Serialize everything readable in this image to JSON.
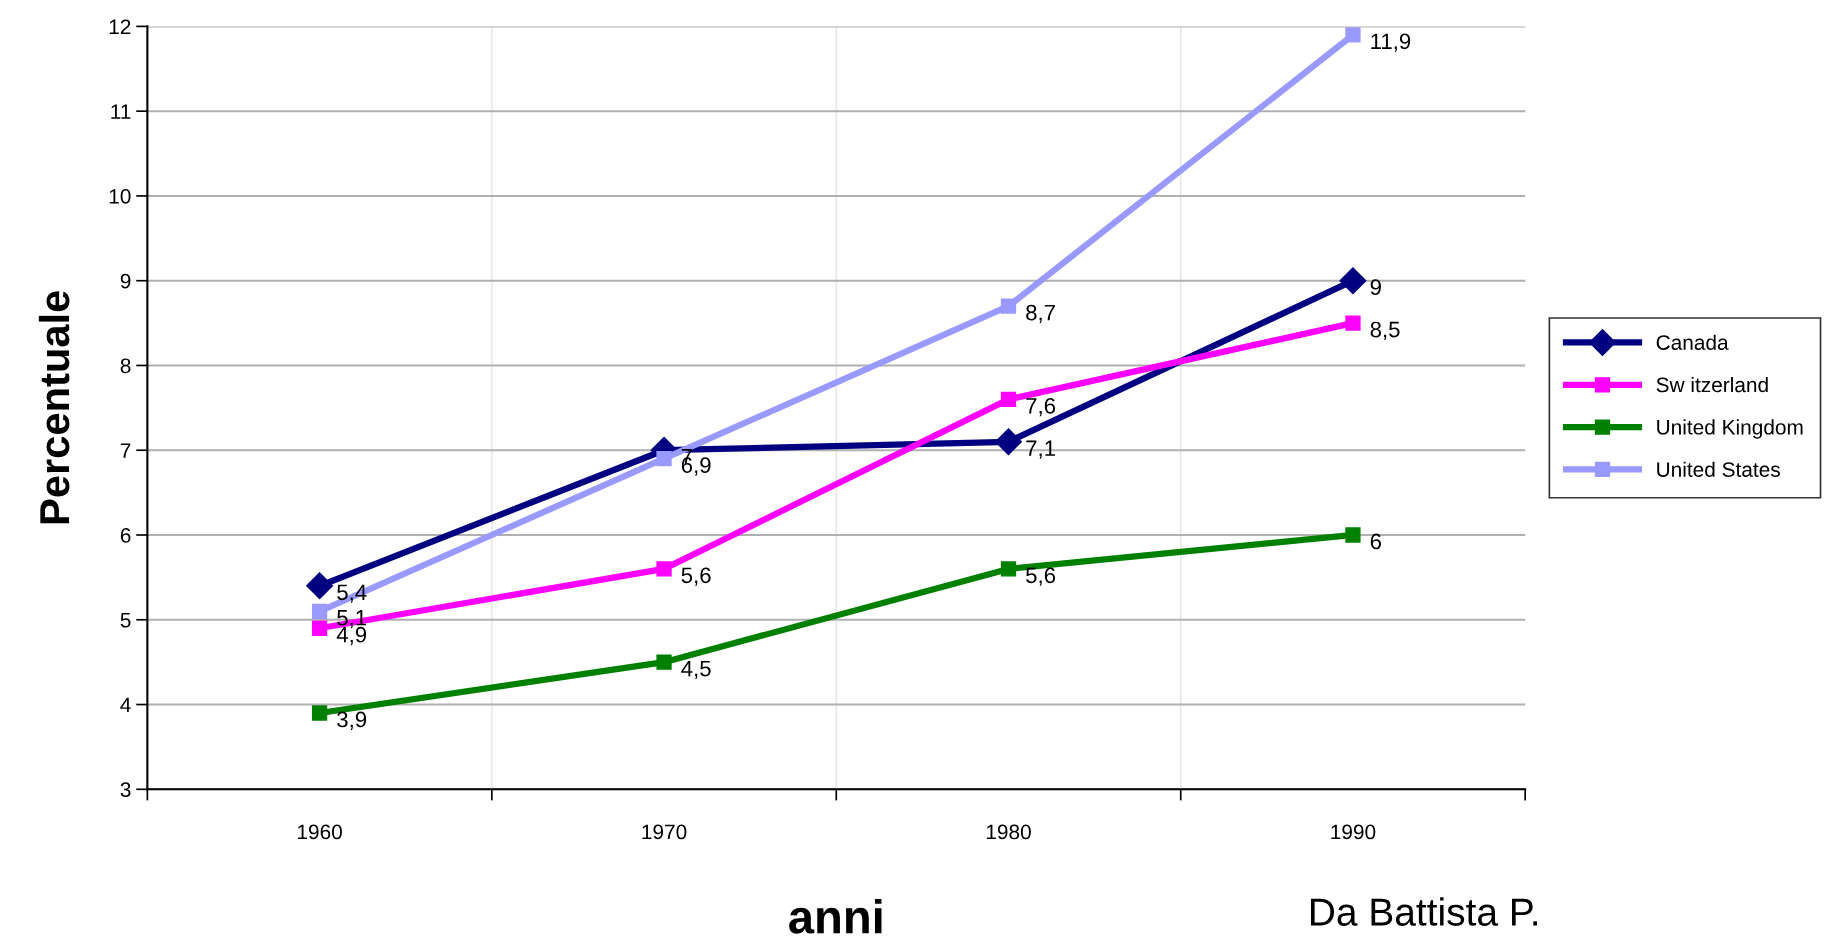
{
  "chart_data": {
    "type": "line",
    "xlabel": "anni",
    "ylabel": "Percentuale",
    "categories": [
      "1960",
      "1970",
      "1980",
      "1990"
    ],
    "ylim": [
      3,
      12
    ],
    "yticks": [
      3,
      4,
      5,
      6,
      7,
      8,
      9,
      10,
      11,
      12
    ],
    "grid": true,
    "legend": "right",
    "line_style": "solid",
    "series": [
      {
        "name": "Canada",
        "color": "#000080",
        "marker": "diamond",
        "values": [
          5.4,
          7.0,
          7.1,
          9.0
        ],
        "value_labels": [
          "5,4",
          "7",
          "7,1",
          "9"
        ]
      },
      {
        "name": "Sw itzerland",
        "color": "#ff00ff",
        "marker": "square",
        "values": [
          4.9,
          5.6,
          7.6,
          8.5
        ],
        "value_labels": [
          "4,9",
          "5,6",
          "7,6",
          "8,5"
        ]
      },
      {
        "name": "United Kingdom",
        "color": "#008000",
        "marker": "square",
        "values": [
          3.9,
          4.5,
          5.6,
          6.0
        ],
        "value_labels": [
          "3,9",
          "4,5",
          "5,6",
          "6"
        ]
      },
      {
        "name": "United States",
        "color": "#9999ff",
        "marker": "square",
        "values": [
          5.1,
          6.9,
          8.7,
          11.9
        ],
        "value_labels": [
          "5,1",
          "6,9",
          "8,7",
          "11,9"
        ]
      }
    ],
    "annotations": [
      "Da Battista P."
    ]
  }
}
